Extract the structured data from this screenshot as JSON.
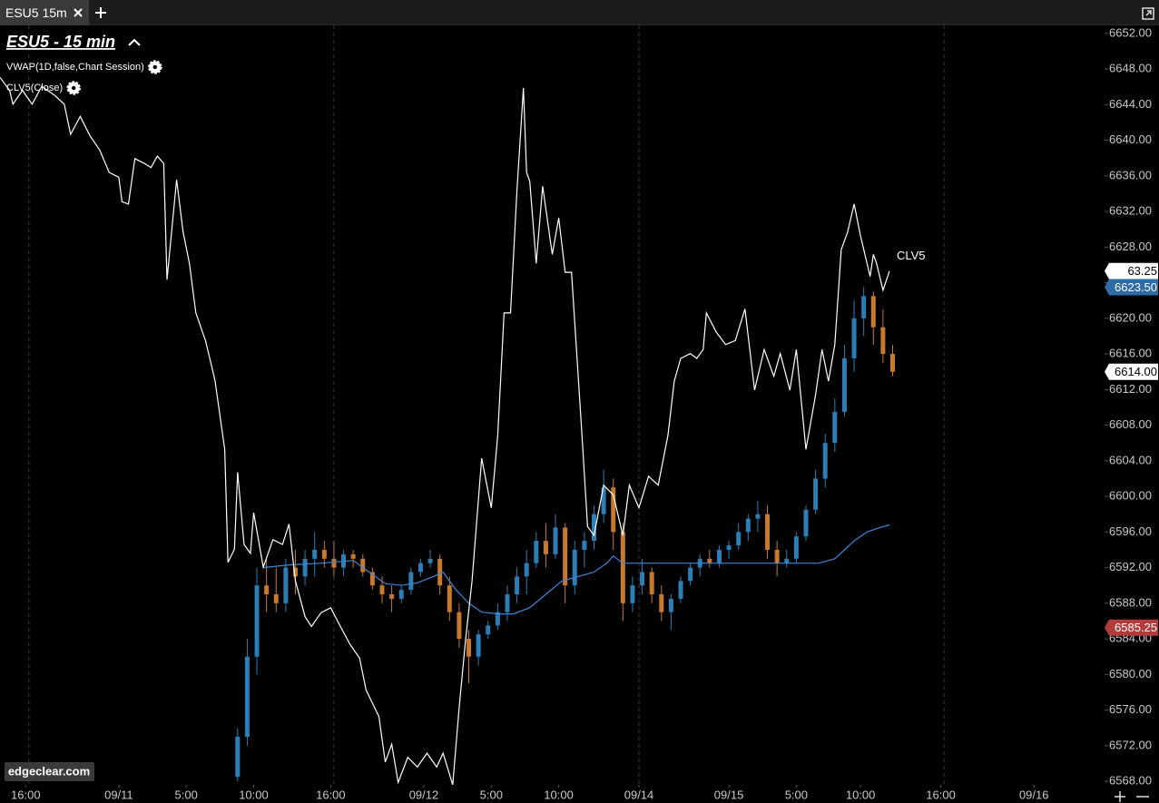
{
  "tab": "ESU5 15m",
  "chart_data": {
    "type": "candlestick",
    "title": "ESU5 - 15 min",
    "watermark": "edgeclear.com",
    "line_label": "CLV5",
    "up_color": "#2b7fb6",
    "down_color": "#c9792c",
    "candles": {
      "x": [
        74,
        77,
        80,
        83,
        86,
        89,
        92,
        95,
        98,
        101,
        104,
        107,
        110,
        113,
        116,
        119,
        122,
        125,
        128,
        131,
        134,
        137,
        140,
        143,
        146,
        149,
        152,
        155,
        158,
        161,
        164,
        167,
        170,
        173,
        176,
        179,
        182,
        185,
        188,
        191,
        194,
        197,
        200,
        203,
        206,
        209,
        212,
        215,
        218,
        221,
        224,
        227,
        230,
        233,
        236,
        239,
        242,
        245,
        248,
        251,
        254,
        257,
        260,
        263,
        266,
        269,
        272,
        275,
        278
      ],
      "open": [
        6568.5,
        6573,
        6582,
        6590,
        6589,
        6588,
        6592,
        6591,
        6593,
        6594,
        6593,
        6592,
        6593.5,
        6593,
        6591.5,
        6590,
        6589,
        6588.5,
        6589.5,
        6591.5,
        6592.5,
        6593,
        6590,
        6587,
        6584,
        6582,
        6584.5,
        6585.5,
        6587,
        6589,
        6591,
        6592.5,
        6595,
        6593.5,
        6596.5,
        6590,
        6594,
        6595,
        6598,
        6601,
        6596,
        6588,
        6590,
        6591.5,
        6589,
        6587,
        6588.5,
        6590.5,
        6592,
        6593,
        6592.5,
        6594,
        6594.5,
        6596,
        6597.5,
        6598,
        6594,
        6592.5,
        6593,
        6595.5,
        6598.5,
        6602,
        6606,
        6609.5,
        6615.5,
        6620,
        6622.5,
        6619,
        6616
      ],
      "high": [
        6574,
        6584,
        6592,
        6593,
        6592,
        6593,
        6594,
        6594,
        6596,
        6595,
        6595,
        6594,
        6594,
        6593.5,
        6592,
        6591,
        6590,
        6590,
        6592,
        6593,
        6594,
        6593.5,
        6591,
        6588,
        6585,
        6585,
        6586,
        6588,
        6590,
        6592,
        6594,
        6596,
        6597,
        6598,
        6597,
        6595,
        6596,
        6599,
        6603,
        6602,
        6597,
        6591,
        6593,
        6592,
        6590,
        6589,
        6591,
        6592.5,
        6593.5,
        6594,
        6594.5,
        6595,
        6597,
        6598,
        6599.5,
        6599,
        6595,
        6594,
        6596,
        6599,
        6603,
        6607,
        6611,
        6617,
        6622,
        6623.5,
        6623,
        6621,
        6617
      ],
      "low": [
        6568,
        6572,
        6580,
        6587,
        6587,
        6587,
        6589,
        6590,
        6591,
        6592,
        6591,
        6591,
        6592,
        6591,
        6589.5,
        6588,
        6587,
        6588,
        6589,
        6591,
        6592,
        6589,
        6586,
        6583,
        6579,
        6581,
        6584,
        6585,
        6586,
        6588,
        6589,
        6592,
        6592,
        6593,
        6588,
        6589,
        6592,
        6594,
        6597,
        6594,
        6586,
        6587,
        6589,
        6588,
        6586,
        6585,
        6588,
        6590,
        6591,
        6592,
        6592,
        6593,
        6594,
        6595,
        6596,
        6593,
        6591,
        6592,
        6592.5,
        6595,
        6598,
        6601,
        6605,
        6609,
        6614,
        6618,
        6617,
        6615,
        6613.5
      ],
      "close": [
        6573,
        6582,
        6590,
        6589,
        6588,
        6592,
        6591,
        6593,
        6594,
        6593,
        6592,
        6593.5,
        6593,
        6591.5,
        6590,
        6589,
        6588.5,
        6589.5,
        6591.5,
        6592.5,
        6593,
        6590,
        6587,
        6584,
        6582,
        6584.5,
        6585.5,
        6587,
        6589,
        6591,
        6592.5,
        6595,
        6593.5,
        6596.5,
        6590,
        6594,
        6595,
        6598,
        6601,
        6596,
        6588,
        6590,
        6591.5,
        6589,
        6587,
        6588.5,
        6590.5,
        6592,
        6593,
        6592.5,
        6594,
        6594.5,
        6596,
        6597.5,
        6598,
        6594,
        6592.5,
        6593,
        6595.5,
        6598.5,
        6602,
        6606,
        6609.5,
        6615.5,
        6620,
        6622.5,
        6619,
        6616,
        6614
      ]
    },
    "series": [
      {
        "name": "VWAP(1D,false,Chart Session)",
        "color": "#3d86d8",
        "x": [
          82,
          90,
          100,
          110,
          115,
          120,
          125,
          130,
          135,
          138,
          142,
          146,
          150,
          155,
          160,
          165,
          170,
          175,
          180,
          185,
          189,
          191,
          194,
          200,
          220,
          240,
          255,
          260,
          263,
          266,
          270,
          274,
          277
        ],
        "values": [
          6592,
          6592.3,
          6592.5,
          6592.8,
          6591.5,
          6590.2,
          6590,
          6590.3,
          6591,
          6591.5,
          6589.5,
          6588,
          6587,
          6586.8,
          6586.8,
          6587.5,
          6589,
          6590.5,
          6591,
          6591.5,
          6592.5,
          6593.3,
          6592.5,
          6592.5,
          6592.5,
          6592.5,
          6592.5,
          6593,
          6594,
          6595,
          6596,
          6596.5,
          6596.8
        ]
      },
      {
        "name": "CLV5(Close)",
        "color": "#ffffff",
        "axis": "y2",
        "x": [
          0,
          3,
          4,
          7,
          10,
          13,
          17,
          20,
          22,
          25,
          28,
          31,
          34,
          37,
          38,
          40,
          42,
          45,
          47,
          49,
          51,
          52,
          55,
          57,
          59,
          61,
          64,
          66,
          67,
          70,
          71,
          73,
          74,
          76,
          78,
          79,
          82,
          85,
          88,
          90,
          92,
          95,
          97,
          100,
          103,
          106,
          109,
          112,
          114,
          118,
          120,
          122,
          124,
          127,
          130,
          133,
          136,
          138,
          141,
          143,
          145,
          147,
          150,
          153,
          155,
          157,
          159,
          161,
          163,
          164,
          165,
          167,
          169,
          172,
          174,
          176,
          178,
          181,
          183,
          185,
          188,
          191,
          194,
          196,
          199,
          202,
          205,
          208,
          210,
          212,
          215,
          217,
          219,
          220,
          223,
          226,
          229,
          232,
          235,
          238,
          241,
          243,
          246,
          248,
          251,
          254,
          256,
          258,
          260,
          262,
          264,
          266,
          268,
          271,
          272,
          273,
          275,
          277
        ],
        "values": [
          87.1,
          85.5,
          83.8,
          85.5,
          83.8,
          86.0,
          84.9,
          83.8,
          80.1,
          82.3,
          79.9,
          78.2,
          75.4,
          74.8,
          71.8,
          71.5,
          77.1,
          76.5,
          76.0,
          77.4,
          76.5,
          62.2,
          74.5,
          68.1,
          64.2,
          58.1,
          54.7,
          51.4,
          49.7,
          41.3,
          27.4,
          29.0,
          38.5,
          29.6,
          28.5,
          33.5,
          26.8,
          30.2,
          29.6,
          32.1,
          25.1,
          20.7,
          19.5,
          21.2,
          21.8,
          19.5,
          17.3,
          15.6,
          11.7,
          8.4,
          2.8,
          5.0,
          0.3,
          3.4,
          2.2,
          3.9,
          2.2,
          3.9,
          0,
          9.5,
          17.9,
          25.1,
          40.2,
          34.1,
          43.0,
          58.1,
          58.1,
          73.2,
          85.8,
          75.4,
          74.3,
          64.2,
          73.7,
          65.3,
          69.8,
          63.1,
          63.1,
          44.7,
          31.8,
          30.7,
          36.9,
          35.7,
          30.7,
          36.9,
          34.1,
          38.0,
          36.9,
          43.0,
          49.7,
          52.5,
          53.1,
          52.5,
          53.6,
          58.1,
          55.8,
          54.2,
          54.7,
          58.6,
          48.6,
          53.6,
          50.3,
          53.1,
          48.6,
          53.6,
          41.3,
          48.0,
          53.6,
          49.7,
          54.2,
          65.9,
          68.1,
          71.5,
          67.6,
          62.6,
          65.3,
          64.2,
          60.9,
          63.25
        ]
      }
    ],
    "markers": [
      {
        "value": 63.25,
        "axis": "y2",
        "color": "#ffffff"
      },
      {
        "value": 6623.5,
        "label": "6623.50",
        "color": "#2f6ca6"
      },
      {
        "value": 6614,
        "label": "6614.00",
        "color": "#ffffff"
      },
      {
        "value": 6585.25,
        "label": "6585.25",
        "color": "#b23c3c"
      }
    ],
    "session_breaks": [
      9,
      104,
      199,
      294
    ],
    "xlim": [
      0,
      344
    ],
    "xticks": [
      {
        "value": 8,
        "label": "16:00"
      },
      {
        "value": 37,
        "label": "09/11"
      },
      {
        "value": 58,
        "label": "5:00"
      },
      {
        "value": 79,
        "label": "10:00"
      },
      {
        "value": 103,
        "label": "16:00"
      },
      {
        "value": 132,
        "label": "09/12"
      },
      {
        "value": 153,
        "label": "5:00"
      },
      {
        "value": 174,
        "label": "10:00"
      },
      {
        "value": 199,
        "label": "09/14"
      },
      {
        "value": 227,
        "label": "09/15"
      },
      {
        "value": 248,
        "label": "5:00"
      },
      {
        "value": 268,
        "label": "10:00"
      },
      {
        "value": 293,
        "label": "16:00"
      },
      {
        "value": 322,
        "label": "09/16"
      }
    ],
    "ylim": [
      6567.6,
      6652.9
    ],
    "yticks": [
      {
        "value": 6568,
        "label": "6568.00"
      },
      {
        "value": 6572,
        "label": "6572.00"
      },
      {
        "value": 6576,
        "label": "6576.00"
      },
      {
        "value": 6580,
        "label": "6580.00"
      },
      {
        "value": 6584,
        "label": "6584.00"
      },
      {
        "value": 6588,
        "label": "6588.00"
      },
      {
        "value": 6592,
        "label": "6592.00"
      },
      {
        "value": 6596,
        "label": "6596.00"
      },
      {
        "value": 6600,
        "label": "6600.00"
      },
      {
        "value": 6604,
        "label": "6604.00"
      },
      {
        "value": 6608,
        "label": "6608.00"
      },
      {
        "value": 6612,
        "label": "6612.00"
      },
      {
        "value": 6616,
        "label": "6616.00"
      },
      {
        "value": 6620,
        "label": "6620.00"
      },
      {
        "value": 6624,
        "label": "6624.00"
      },
      {
        "value": 6628,
        "label": "6628.00"
      },
      {
        "value": 6632,
        "label": "6632.00"
      },
      {
        "value": 6636,
        "label": "6636.00"
      },
      {
        "value": 6640,
        "label": "6640.00"
      },
      {
        "value": 6644,
        "label": "6644.00"
      },
      {
        "value": 6648,
        "label": "6648.00"
      },
      {
        "value": 6652,
        "label": "6652.00"
      }
    ],
    "y2lim": [
      0,
      93.5
    ]
  }
}
